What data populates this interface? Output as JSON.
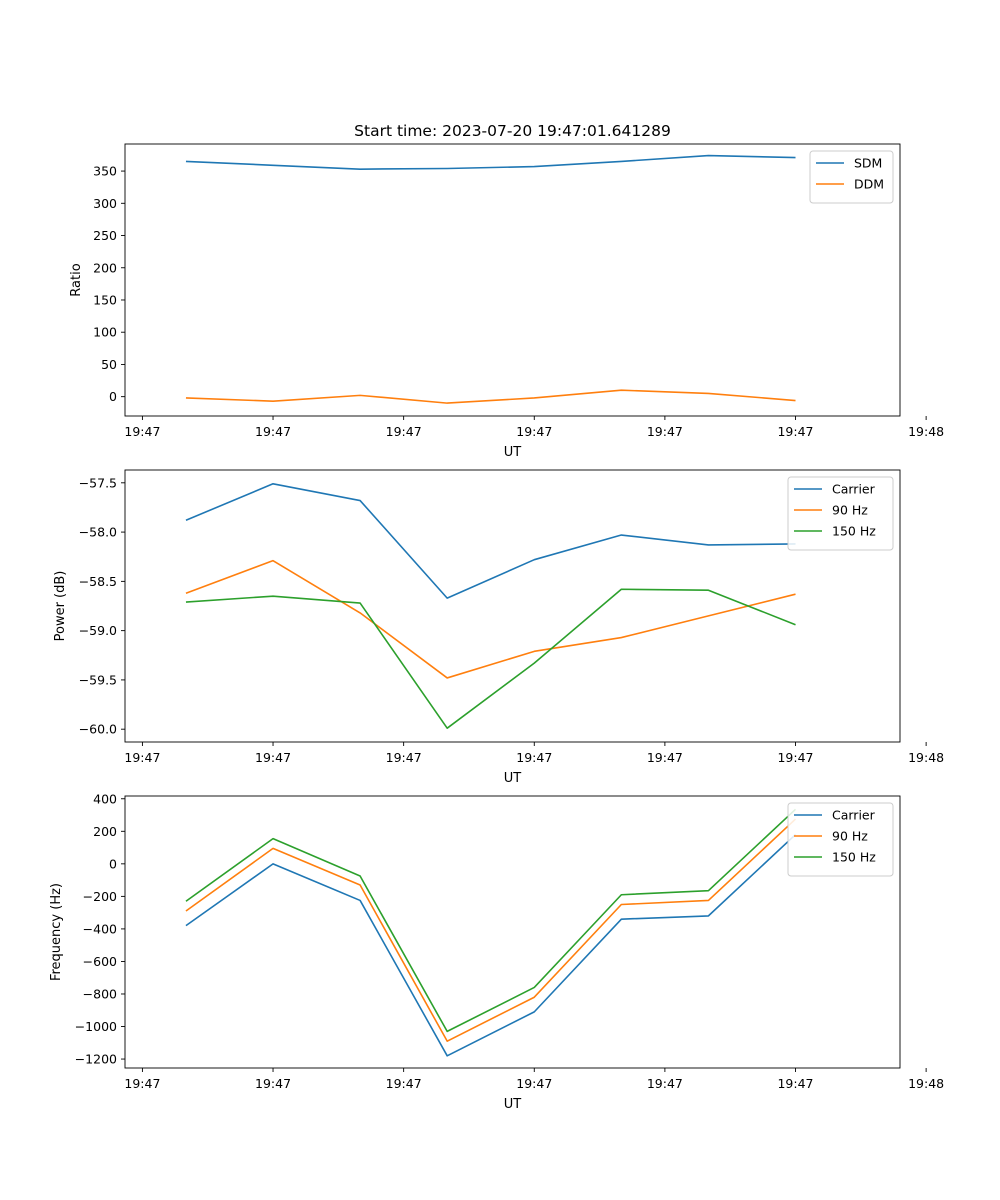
{
  "figure_title": "Start time: 2023-07-20 19:47:01.641289",
  "colors": {
    "blue": "#1f77b4",
    "orange": "#ff7f0e",
    "green": "#2ca02c"
  },
  "chart_data": [
    {
      "type": "line",
      "title": "Start time: 2023-07-20 19:47:01.641289",
      "xlabel": "UT",
      "ylabel": "Ratio",
      "x": [
        1,
        2,
        3,
        4,
        5,
        6,
        7,
        8
      ],
      "xlim": [
        0.3,
        9.2
      ],
      "x_ticks": [
        0.5,
        2,
        3.5,
        5,
        6.5,
        8,
        9.5
      ],
      "x_tick_labels": [
        "19:47",
        "19:47",
        "19:47",
        "19:47",
        "19:47",
        "19:47",
        "19:48"
      ],
      "ylim": [
        -30,
        392
      ],
      "y_ticks": [
        0,
        50,
        100,
        150,
        200,
        250,
        300,
        350
      ],
      "y_tick_labels": [
        "0",
        "50",
        "100",
        "150",
        "200",
        "250",
        "300",
        "350"
      ],
      "legend_position": "top-right",
      "series": [
        {
          "name": "SDM",
          "color": "#1f77b4",
          "values": [
            365,
            359,
            353,
            354,
            357,
            365,
            374,
            371
          ]
        },
        {
          "name": "DDM",
          "color": "#ff7f0e",
          "values": [
            -2,
            -7,
            2,
            -10,
            -2,
            10,
            5,
            -6
          ]
        }
      ]
    },
    {
      "type": "line",
      "title": "",
      "xlabel": "UT",
      "ylabel": "Power (dB)",
      "x": [
        1,
        2,
        3,
        4,
        5,
        6,
        7,
        8
      ],
      "xlim": [
        0.3,
        9.2
      ],
      "x_ticks": [
        0.5,
        2,
        3.5,
        5,
        6.5,
        8,
        9.5
      ],
      "x_tick_labels": [
        "19:47",
        "19:47",
        "19:47",
        "19:47",
        "19:47",
        "19:47",
        "19:48"
      ],
      "ylim": [
        -60.13,
        -57.37
      ],
      "y_ticks": [
        -60.0,
        -59.5,
        -59.0,
        -58.5,
        -58.0,
        -57.5
      ],
      "y_tick_labels": [
        "−60.0",
        "−59.5",
        "−59.0",
        "−58.5",
        "−58.0",
        "−57.5"
      ],
      "legend_position": "top-right",
      "series": [
        {
          "name": "Carrier",
          "color": "#1f77b4",
          "values": [
            -57.88,
            -57.51,
            -57.68,
            -58.67,
            -58.28,
            -58.03,
            -58.13,
            -58.12
          ]
        },
        {
          "name": "90 Hz",
          "color": "#ff7f0e",
          "values": [
            -58.62,
            -58.29,
            -58.82,
            -59.48,
            -59.21,
            -59.07,
            -58.85,
            -58.63
          ]
        },
        {
          "name": "150 Hz",
          "color": "#2ca02c",
          "values": [
            -58.71,
            -58.65,
            -58.72,
            -59.99,
            -59.33,
            -58.58,
            -58.59,
            -58.94
          ]
        }
      ]
    },
    {
      "type": "line",
      "title": "",
      "xlabel": "UT",
      "ylabel": "Frequency (Hz)",
      "x": [
        1,
        2,
        3,
        4,
        5,
        6,
        7,
        8
      ],
      "xlim": [
        0.3,
        9.2
      ],
      "x_ticks": [
        0.5,
        2,
        3.5,
        5,
        6.5,
        8,
        9.5
      ],
      "x_tick_labels": [
        "19:47",
        "19:47",
        "19:47",
        "19:47",
        "19:47",
        "19:47",
        "19:48"
      ],
      "ylim": [
        -1255,
        417
      ],
      "y_ticks": [
        -1200,
        -1000,
        -800,
        -600,
        -400,
        -200,
        0,
        200,
        400
      ],
      "y_tick_labels": [
        "−1200",
        "−1000",
        "−800",
        "−600",
        "−400",
        "−200",
        "0",
        "200",
        "400"
      ],
      "legend_position": "top-right",
      "series": [
        {
          "name": "Carrier",
          "color": "#1f77b4",
          "values": [
            -380,
            0,
            -225,
            -1180,
            -910,
            -340,
            -320,
            180
          ]
        },
        {
          "name": "90 Hz",
          "color": "#ff7f0e",
          "values": [
            -290,
            95,
            -130,
            -1090,
            -820,
            -250,
            -225,
            275
          ]
        },
        {
          "name": "150 Hz",
          "color": "#2ca02c",
          "values": [
            -230,
            155,
            -75,
            -1030,
            -760,
            -190,
            -165,
            335
          ]
        }
      ]
    }
  ]
}
